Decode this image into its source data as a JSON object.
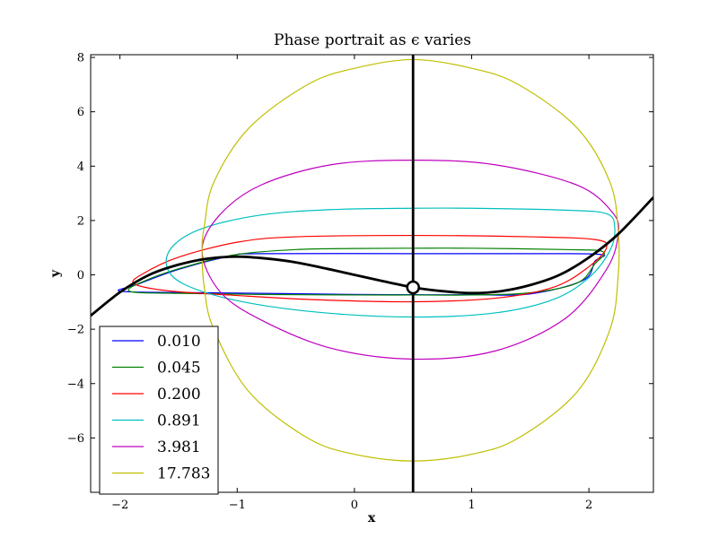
{
  "chart_data": {
    "type": "line",
    "title": "Phase portrait as ϵ varies",
    "xlabel": "x",
    "ylabel": "y",
    "xlim": [
      -2.25,
      2.55
    ],
    "ylim": [
      -8.0,
      8.1
    ],
    "xticks": [
      {
        "value": -2,
        "label": "−2"
      },
      {
        "value": -1,
        "label": "−1"
      },
      {
        "value": 0,
        "label": "0"
      },
      {
        "value": 1,
        "label": "1"
      },
      {
        "value": 2,
        "label": "2"
      }
    ],
    "yticks": [
      {
        "value": -6,
        "label": "−6"
      },
      {
        "value": -4,
        "label": "−4"
      },
      {
        "value": -2,
        "label": "−2"
      },
      {
        "value": 0,
        "label": "0"
      },
      {
        "value": 2,
        "label": "2"
      },
      {
        "value": 4,
        "label": "4"
      },
      {
        "value": 6,
        "label": "6"
      },
      {
        "value": 8,
        "label": "8"
      }
    ],
    "grid": false,
    "legend_position": "lower-left",
    "series": [
      {
        "name": "0.010",
        "color": "#0000ff",
        "points": [
          [
            -2.0,
            -0.6
          ],
          [
            -1.5,
            -0.65
          ],
          [
            -0.8,
            -0.68
          ],
          [
            0.0,
            -0.72
          ],
          [
            0.5,
            -0.73
          ],
          [
            1.0,
            -0.73
          ],
          [
            1.5,
            -0.7
          ],
          [
            1.95,
            -0.2
          ],
          [
            2.05,
            0.5
          ],
          [
            2.1,
            0.75
          ],
          [
            1.5,
            0.78
          ],
          [
            0.5,
            0.78
          ],
          [
            -0.8,
            0.78
          ],
          [
            -1.05,
            0.7
          ],
          [
            -1.5,
            0.2
          ],
          [
            -1.85,
            -0.35
          ],
          [
            -2.0,
            -0.6
          ]
        ]
      },
      {
        "name": "0.045",
        "color": "#008000",
        "points": [
          [
            -1.92,
            -0.6
          ],
          [
            -1.5,
            -0.68
          ],
          [
            -0.8,
            -0.72
          ],
          [
            0.0,
            -0.74
          ],
          [
            0.5,
            -0.74
          ],
          [
            1.0,
            -0.74
          ],
          [
            1.5,
            -0.66
          ],
          [
            1.9,
            -0.3
          ],
          [
            2.05,
            0.4
          ],
          [
            2.12,
            0.85
          ],
          [
            1.8,
            0.93
          ],
          [
            1.0,
            0.98
          ],
          [
            0.5,
            0.98
          ],
          [
            0.0,
            0.97
          ],
          [
            -0.5,
            0.93
          ],
          [
            -1.0,
            0.75
          ],
          [
            -1.4,
            0.35
          ],
          [
            -1.75,
            -0.15
          ],
          [
            -1.92,
            -0.6
          ]
        ]
      },
      {
        "name": "0.200",
        "color": "#ff0000",
        "points": [
          [
            -1.88,
            -0.32
          ],
          [
            -1.6,
            -0.58
          ],
          [
            -1.0,
            -0.76
          ],
          [
            -0.3,
            -0.92
          ],
          [
            0.5,
            -0.99
          ],
          [
            1.2,
            -0.86
          ],
          [
            1.7,
            -0.45
          ],
          [
            2.0,
            0.3
          ],
          [
            2.15,
            1.0
          ],
          [
            2.05,
            1.3
          ],
          [
            1.5,
            1.4
          ],
          [
            0.5,
            1.45
          ],
          [
            -0.5,
            1.4
          ],
          [
            -1.0,
            1.2
          ],
          [
            -1.5,
            0.65
          ],
          [
            -1.8,
            0.05
          ],
          [
            -1.88,
            -0.32
          ]
        ]
      },
      {
        "name": "0.891",
        "color": "#00bfbf",
        "points": [
          [
            -1.6,
            0.3
          ],
          [
            -1.45,
            -0.35
          ],
          [
            -1.0,
            -0.95
          ],
          [
            -0.3,
            -1.38
          ],
          [
            0.5,
            -1.55
          ],
          [
            1.2,
            -1.4
          ],
          [
            1.7,
            -0.9
          ],
          [
            2.0,
            -0.1
          ],
          [
            2.18,
            0.9
          ],
          [
            2.22,
            1.75
          ],
          [
            2.15,
            2.25
          ],
          [
            1.8,
            2.38
          ],
          [
            1.0,
            2.45
          ],
          [
            0.5,
            2.45
          ],
          [
            -0.2,
            2.4
          ],
          [
            -0.8,
            2.2
          ],
          [
            -1.3,
            1.7
          ],
          [
            -1.55,
            1.05
          ],
          [
            -1.6,
            0.3
          ]
        ]
      },
      {
        "name": "3.981",
        "color": "#bf00bf",
        "points": [
          [
            -1.3,
            0.9
          ],
          [
            -1.15,
            -0.6
          ],
          [
            -0.8,
            -1.65
          ],
          [
            -0.2,
            -2.7
          ],
          [
            0.5,
            -3.1
          ],
          [
            1.2,
            -2.8
          ],
          [
            1.8,
            -1.6
          ],
          [
            2.15,
            0.2
          ],
          [
            2.25,
            1.5
          ],
          [
            2.2,
            2.3
          ],
          [
            1.9,
            3.3
          ],
          [
            1.2,
            4.05
          ],
          [
            0.5,
            4.22
          ],
          [
            -0.2,
            4.05
          ],
          [
            -0.8,
            3.3
          ],
          [
            -1.15,
            2.2
          ],
          [
            -1.3,
            0.9
          ]
        ]
      },
      {
        "name": "17.783",
        "color": "#bfbf00",
        "points": [
          [
            -1.3,
            0.9
          ],
          [
            -1.28,
            -0.5
          ],
          [
            -1.2,
            -2.0
          ],
          [
            -0.9,
            -4.3
          ],
          [
            -0.4,
            -6.0
          ],
          [
            0.0,
            -6.6
          ],
          [
            0.5,
            -6.85
          ],
          [
            1.0,
            -6.6
          ],
          [
            1.4,
            -6.0
          ],
          [
            1.9,
            -4.3
          ],
          [
            2.18,
            -2.0
          ],
          [
            2.25,
            0.0
          ],
          [
            2.25,
            1.6
          ],
          [
            2.18,
            3.4
          ],
          [
            1.9,
            5.4
          ],
          [
            1.4,
            7.0
          ],
          [
            1.0,
            7.6
          ],
          [
            0.5,
            7.92
          ],
          [
            0.0,
            7.6
          ],
          [
            -0.4,
            7.0
          ],
          [
            -0.9,
            5.4
          ],
          [
            -1.2,
            3.4
          ],
          [
            -1.28,
            1.8
          ],
          [
            -1.3,
            0.9
          ]
        ]
      }
    ],
    "nullcline": {
      "color": "#000000",
      "points": [
        [
          -2.25,
          -1.5
        ],
        [
          -2.0,
          -0.64
        ],
        [
          -1.75,
          0.0
        ],
        [
          -1.5,
          0.375
        ],
        [
          -1.25,
          0.6
        ],
        [
          -1.0,
          0.67
        ],
        [
          -0.75,
          0.6
        ],
        [
          -0.5,
          0.46
        ],
        [
          -0.25,
          0.24
        ],
        [
          0.0,
          0.0
        ],
        [
          0.25,
          -0.24
        ],
        [
          0.5,
          -0.46
        ],
        [
          0.75,
          -0.6
        ],
        [
          1.0,
          -0.67
        ],
        [
          1.25,
          -0.6
        ],
        [
          1.5,
          -0.375
        ],
        [
          1.75,
          0.0
        ],
        [
          2.0,
          0.64
        ],
        [
          2.25,
          1.5
        ],
        [
          2.55,
          2.85
        ]
      ]
    },
    "vertical_line_x": 0.5,
    "fixed_point": [
      0.5,
      -0.46
    ]
  }
}
